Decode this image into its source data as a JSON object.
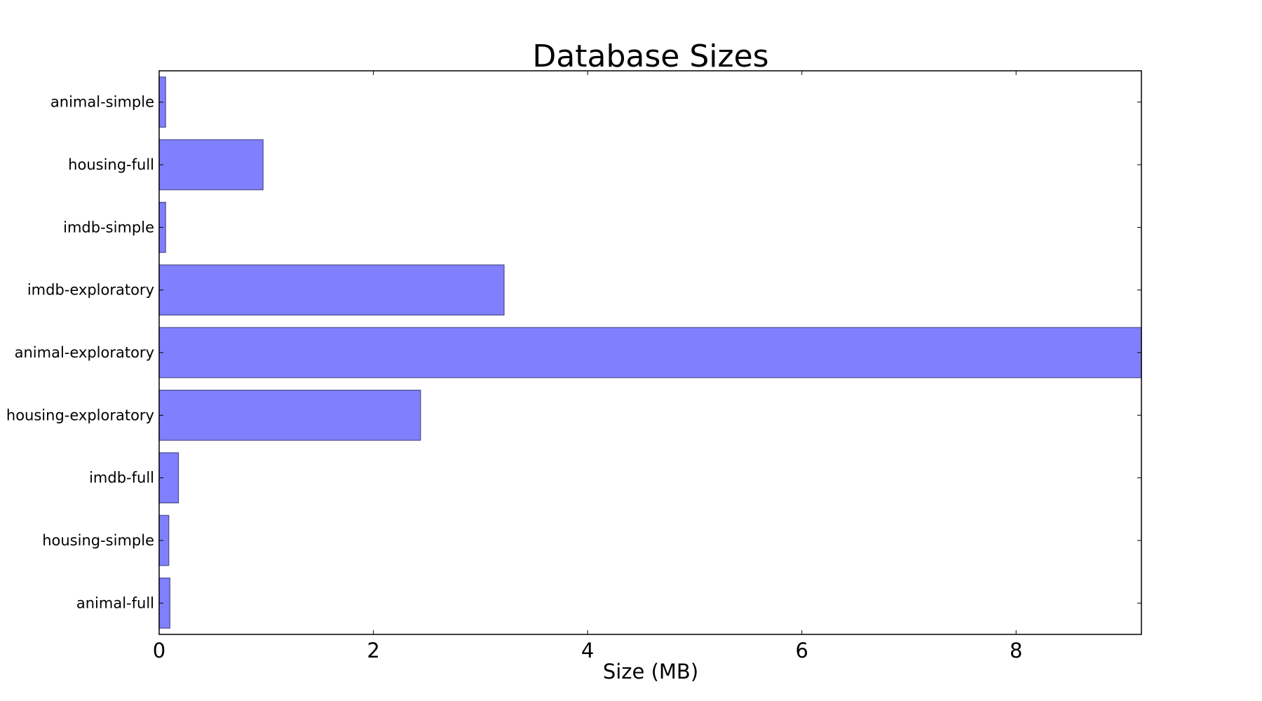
{
  "chart_data": {
    "type": "bar",
    "orientation": "horizontal",
    "title": "Database Sizes",
    "xlabel": "Size (MB)",
    "ylabel": "",
    "xlim": [
      0,
      9.17
    ],
    "xticks": [
      0,
      2,
      4,
      6,
      8
    ],
    "grid": false,
    "bar_color": "#8080ff",
    "bar_edge_color": "#4b4b8f",
    "categories": [
      "animal-simple",
      "housing-full",
      "imdb-simple",
      "imdb-exploratory",
      "animal-exploratory",
      "housing-exploratory",
      "imdb-full",
      "housing-simple",
      "animal-full"
    ],
    "values": [
      0.06,
      0.97,
      0.06,
      3.22,
      9.17,
      2.44,
      0.18,
      0.09,
      0.1
    ]
  }
}
